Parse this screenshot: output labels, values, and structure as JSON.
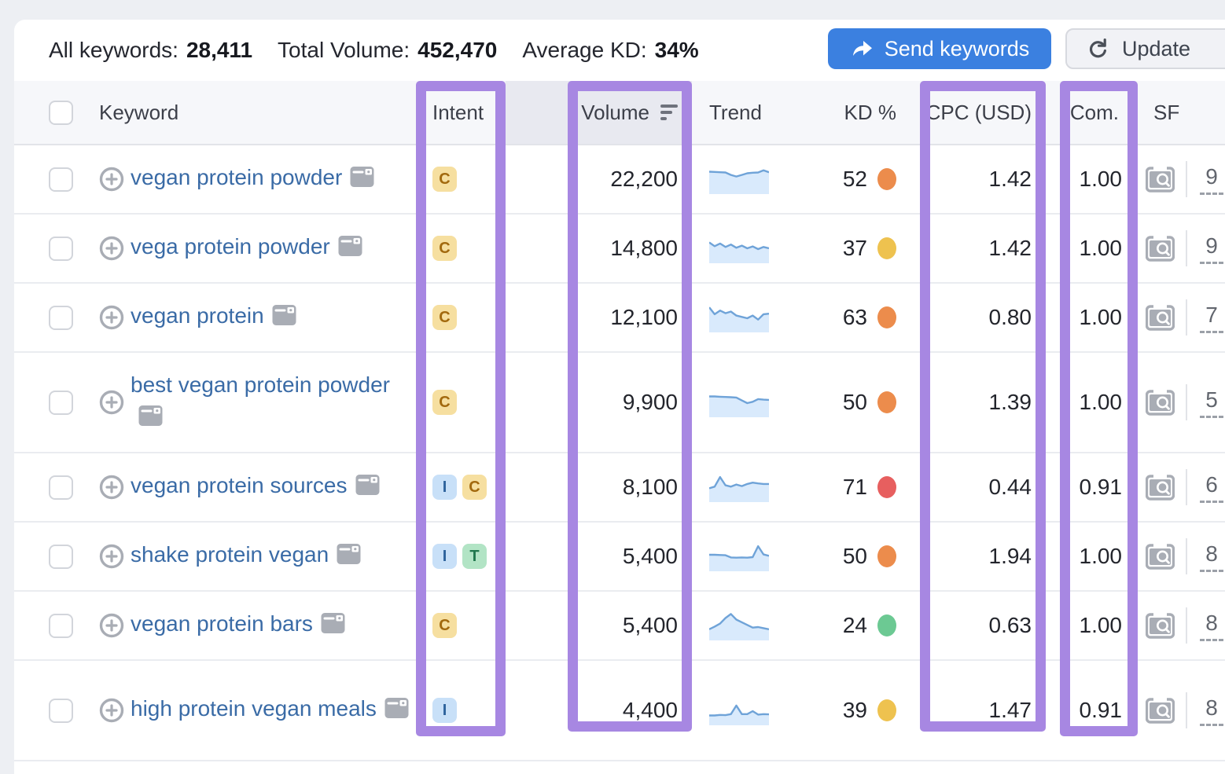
{
  "summary": {
    "all_keywords_label": "All keywords:",
    "all_keywords_value": "28,411",
    "total_volume_label": "Total Volume:",
    "total_volume_value": "452,470",
    "average_kd_label": "Average KD:",
    "average_kd_value": "34%",
    "send_keywords_label": "Send keywords",
    "update_label": "Update"
  },
  "table": {
    "headers": {
      "keyword": "Keyword",
      "intent": "Intent",
      "volume": "Volume",
      "trend": "Trend",
      "kd": "KD %",
      "cpc": "CPC (USD)",
      "com": "Com.",
      "sf": "SF"
    },
    "rows": [
      {
        "keyword": "vegan protein powder",
        "intents": [
          "C"
        ],
        "volume": "22,200",
        "trend": [
          78,
          77,
          76,
          75,
          66,
          60,
          66,
          72,
          74,
          75,
          83,
          76
        ],
        "kd": "52",
        "kd_level": "orange",
        "cpc": "1.42",
        "com": "1.00",
        "sf": "9",
        "two_line": false
      },
      {
        "keyword": "vega protein powder",
        "intents": [
          "C"
        ],
        "volume": "14,800",
        "trend": [
          72,
          58,
          68,
          55,
          64,
          52,
          60,
          50,
          57,
          47,
          55,
          50
        ],
        "kd": "37",
        "kd_level": "yellow",
        "cpc": "1.42",
        "com": "1.00",
        "sf": "9",
        "two_line": false
      },
      {
        "keyword": "vegan protein",
        "intents": [
          "C"
        ],
        "volume": "12,100",
        "trend": [
          88,
          62,
          76,
          66,
          72,
          57,
          52,
          47,
          57,
          42,
          62,
          64
        ],
        "kd": "63",
        "kd_level": "orange",
        "cpc": "0.80",
        "com": "1.00",
        "sf": "7",
        "two_line": false
      },
      {
        "keyword": "best vegan protein powder",
        "intents": [
          "C"
        ],
        "volume": "9,900",
        "trend": [
          72,
          72,
          71,
          70,
          69,
          68,
          57,
          47,
          52,
          62,
          60,
          59
        ],
        "kd": "50",
        "kd_level": "orange",
        "cpc": "1.39",
        "com": "1.00",
        "sf": "5",
        "two_line": true
      },
      {
        "keyword": "vegan protein sources",
        "intents": [
          "I",
          "C"
        ],
        "volume": "8,100",
        "trend": [
          46,
          52,
          88,
          57,
          52,
          60,
          54,
          62,
          67,
          64,
          62,
          62
        ],
        "kd": "71",
        "kd_level": "red",
        "cpc": "0.44",
        "com": "0.91",
        "sf": "6",
        "two_line": false
      },
      {
        "keyword": "shake protein vegan",
        "intents": [
          "I",
          "T"
        ],
        "volume": "5,400",
        "trend": [
          56,
          56,
          55,
          54,
          46,
          45,
          46,
          45,
          47,
          88,
          57,
          52
        ],
        "kd": "50",
        "kd_level": "orange",
        "cpc": "1.94",
        "com": "1.00",
        "sf": "8",
        "two_line": false
      },
      {
        "keyword": "vegan protein bars",
        "intents": [
          "C"
        ],
        "volume": "5,400",
        "trend": [
          36,
          46,
          57,
          78,
          93,
          72,
          62,
          52,
          42,
          44,
          40,
          36
        ],
        "kd": "24",
        "kd_level": "green",
        "cpc": "0.63",
        "com": "1.00",
        "sf": "8",
        "two_line": false
      },
      {
        "keyword": "high protein vegan meals",
        "intents": [
          "I"
        ],
        "volume": "4,400",
        "trend": [
          31,
          31,
          33,
          32,
          36,
          68,
          36,
          36,
          47,
          34,
          36,
          35
        ],
        "kd": "39",
        "kd_level": "yellow",
        "cpc": "1.47",
        "com": "0.91",
        "sf": "8",
        "two_line": true
      }
    ]
  },
  "colors": {
    "highlight_purple": "#a787e2",
    "send_button_blue": "#3b80e0",
    "keyword_link_blue": "#3a6ba6",
    "kd_green": "#6cc993",
    "kd_yellow": "#eec24f",
    "kd_orange": "#ec8c4c",
    "kd_red": "#e75f5f",
    "intent_c_bg": "#f6dfa0",
    "intent_c_text": "#a2690e",
    "intent_i_bg": "#c8e0f8",
    "intent_i_text": "#2d629c",
    "intent_t_bg": "#b2e4c5",
    "intent_t_text": "#20774d",
    "spark_line": "#6fa3d8",
    "spark_fill": "#d9eafc"
  },
  "icons": {
    "send_arrow": "forward-arrow",
    "update_refresh": "refresh-circular-arrow",
    "volume_sort": "sort-descending-bars",
    "add_keyword": "plus-circle",
    "keyword_serp": "serp-window",
    "sf_preview": "serp-preview-magnifier"
  }
}
